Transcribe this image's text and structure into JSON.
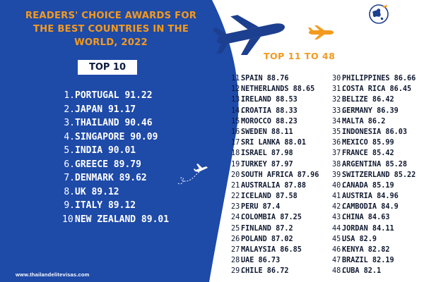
{
  "header": {
    "title_lines": [
      "READERS' CHOICE AWARDS FOR",
      "THE BEST COUNTRIES IN THE",
      "WORLD, 2022"
    ]
  },
  "top10": {
    "badge": "TOP 10",
    "items": [
      {
        "num": "1.",
        "name": "PORTUGAL 91.22"
      },
      {
        "num": "2.",
        "name": "JAPAN 91.17"
      },
      {
        "num": "3.",
        "name": "THAILAND 90.46"
      },
      {
        "num": "4.",
        "name": "SINGAPORE 90.09"
      },
      {
        "num": "5.",
        "name": "INDIA 90.01"
      },
      {
        "num": "6.",
        "name": "GREECE 89.79"
      },
      {
        "num": "7.",
        "name": "DENMARK 89.62"
      },
      {
        "num": "8.",
        "name": "UK 89.12"
      },
      {
        "num": "9.",
        "name": "ITALY 89.12"
      },
      {
        "num": "10.",
        "name": "NEW ZEALAND 89.01"
      }
    ]
  },
  "rest": {
    "heading": "TOP 11 TO 48",
    "column_a": [
      {
        "num": "11.",
        "name": "SPAIN 88.76"
      },
      {
        "num": "12.",
        "name": "NETHERLANDS 88.65"
      },
      {
        "num": "13.",
        "name": "IRELAND 88.53"
      },
      {
        "num": "14.",
        "name": "CROATIA 88.33"
      },
      {
        "num": "15.",
        "name": "MOROCCO 88.23"
      },
      {
        "num": "16.",
        "name": "SWEDEN 88.11"
      },
      {
        "num": "17.",
        "name": "SRI LANKA 88.01"
      },
      {
        "num": "18.",
        "name": "ISRAEL 87.98"
      },
      {
        "num": "19.",
        "name": "TURKEY 87.97"
      },
      {
        "num": "20.",
        "name": "SOUTH AFRICA 87.96"
      },
      {
        "num": "21.",
        "name": "AUSTRALIA 87.88"
      },
      {
        "num": "22.",
        "name": "ICELAND 87.58"
      },
      {
        "num": "23.",
        "name": "PERU 87.4"
      },
      {
        "num": "24.",
        "name": "COLOMBIA 87.25"
      },
      {
        "num": "25.",
        "name": "FINLAND 87.2"
      },
      {
        "num": "26.",
        "name": "POLAND 87.02"
      },
      {
        "num": "27.",
        "name": "MALAYSIA 86.85"
      },
      {
        "num": "28.",
        "name": "UAE 86.73"
      },
      {
        "num": "29.",
        "name": "CHILE 86.72"
      }
    ],
    "column_b": [
      {
        "num": "30.",
        "name": "PHILIPPINES 86.66"
      },
      {
        "num": "31.",
        "name": "COSTA RICA 86.45"
      },
      {
        "num": "32.",
        "name": "BELIZE 86.42"
      },
      {
        "num": "33.",
        "name": "GERMANY 86.39"
      },
      {
        "num": "34.",
        "name": "MALTA 86.2"
      },
      {
        "num": "35.",
        "name": "INDONESIA 86.03"
      },
      {
        "num": "36.",
        "name": "MEXICO 85.99"
      },
      {
        "num": "37.",
        "name": "FRANCE 85.42"
      },
      {
        "num": "38.",
        "name": "ARGENTINA 85.28"
      },
      {
        "num": "39.",
        "name": "SWITZERLAND 85.22"
      },
      {
        "num": "40.",
        "name": "CANADA 85.19"
      },
      {
        "num": "41.",
        "name": "AUSTRIA 84.96"
      },
      {
        "num": "42.",
        "name": "CAMBODIA 84.9"
      },
      {
        "num": "43.",
        "name": "CHINA 84.63"
      },
      {
        "num": "44.",
        "name": "JORDAN 84.11"
      },
      {
        "num": "45.",
        "name": "USA 82.9"
      },
      {
        "num": "46.",
        "name": "KENYA 82.82"
      },
      {
        "num": "47.",
        "name": "BRAZIL 82.19"
      },
      {
        "num": "48.",
        "name": "CUBA 82.1"
      }
    ]
  },
  "footer": {
    "website": "www.thailandelitevisas.com"
  },
  "icons": {
    "large_plane": "airplane-icon",
    "small_plane": "airplane-icon",
    "tiny_plane": "airplane-icon",
    "logo": "globe-plane-logo"
  },
  "colors": {
    "panel_blue": "#1e4aa8",
    "accent_orange": "#f39a1e",
    "navy_text": "#0f1830",
    "plane_navy": "#1d3f8f"
  }
}
